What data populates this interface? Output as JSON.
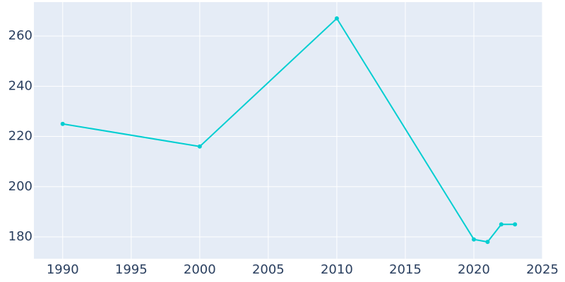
{
  "chart_data": {
    "type": "line",
    "x": [
      1990,
      2000,
      2010,
      2020,
      2021,
      2022,
      2023
    ],
    "values": [
      225,
      216,
      267,
      179,
      178,
      185,
      185
    ],
    "color": "#00ced1",
    "xlim": [
      1987.9,
      2025
    ],
    "xticks": [
      1990,
      1995,
      2000,
      2005,
      2010,
      2015,
      2020,
      2025
    ],
    "ylim": [
      171.3,
      273.5
    ],
    "yticks": [
      180,
      200,
      220,
      240,
      260
    ],
    "grid": true
  }
}
